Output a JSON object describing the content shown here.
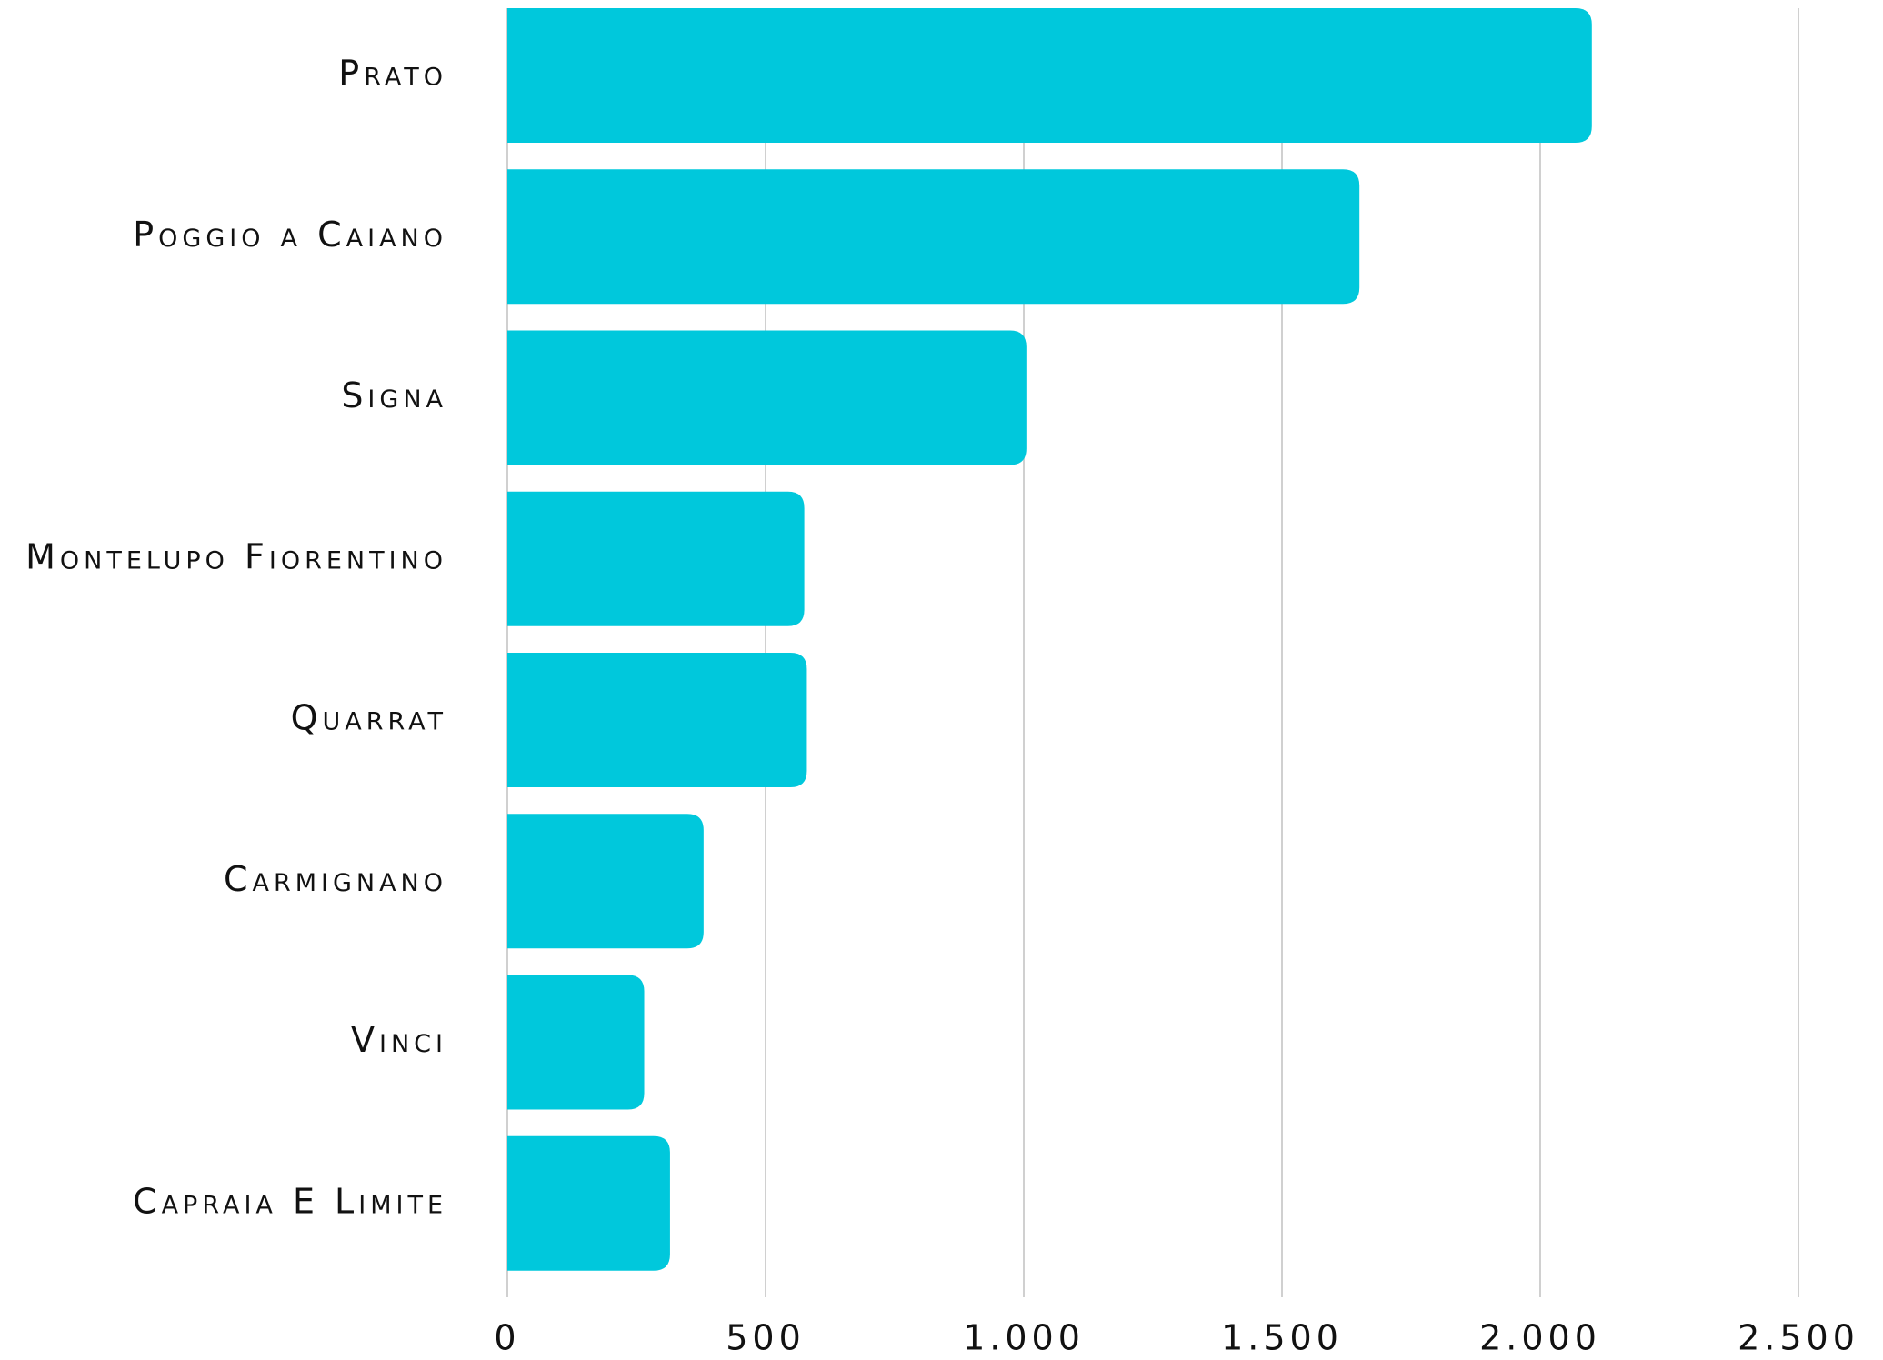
{
  "chart_data": {
    "type": "bar",
    "orientation": "horizontal",
    "categories": [
      "Prato",
      "Poggio a Caiano",
      "Signa",
      "Montelupo Fiorentino",
      "Quarrat",
      "Carmignano",
      "Vinci",
      "Capraia E Limite"
    ],
    "values": [
      2100,
      1650,
      1005,
      575,
      580,
      380,
      265,
      315
    ],
    "color": "#00c8dc",
    "xlim": [
      0,
      2500
    ],
    "xticks": [
      0,
      500,
      {
        "value": 1000,
        "label": "1.000"
      },
      {
        "value": 1500,
        "label": "1.500"
      },
      {
        "value": 2000,
        "label": "2.000"
      },
      {
        "value": 2500,
        "label": "2.500"
      }
    ],
    "grid": true
  }
}
